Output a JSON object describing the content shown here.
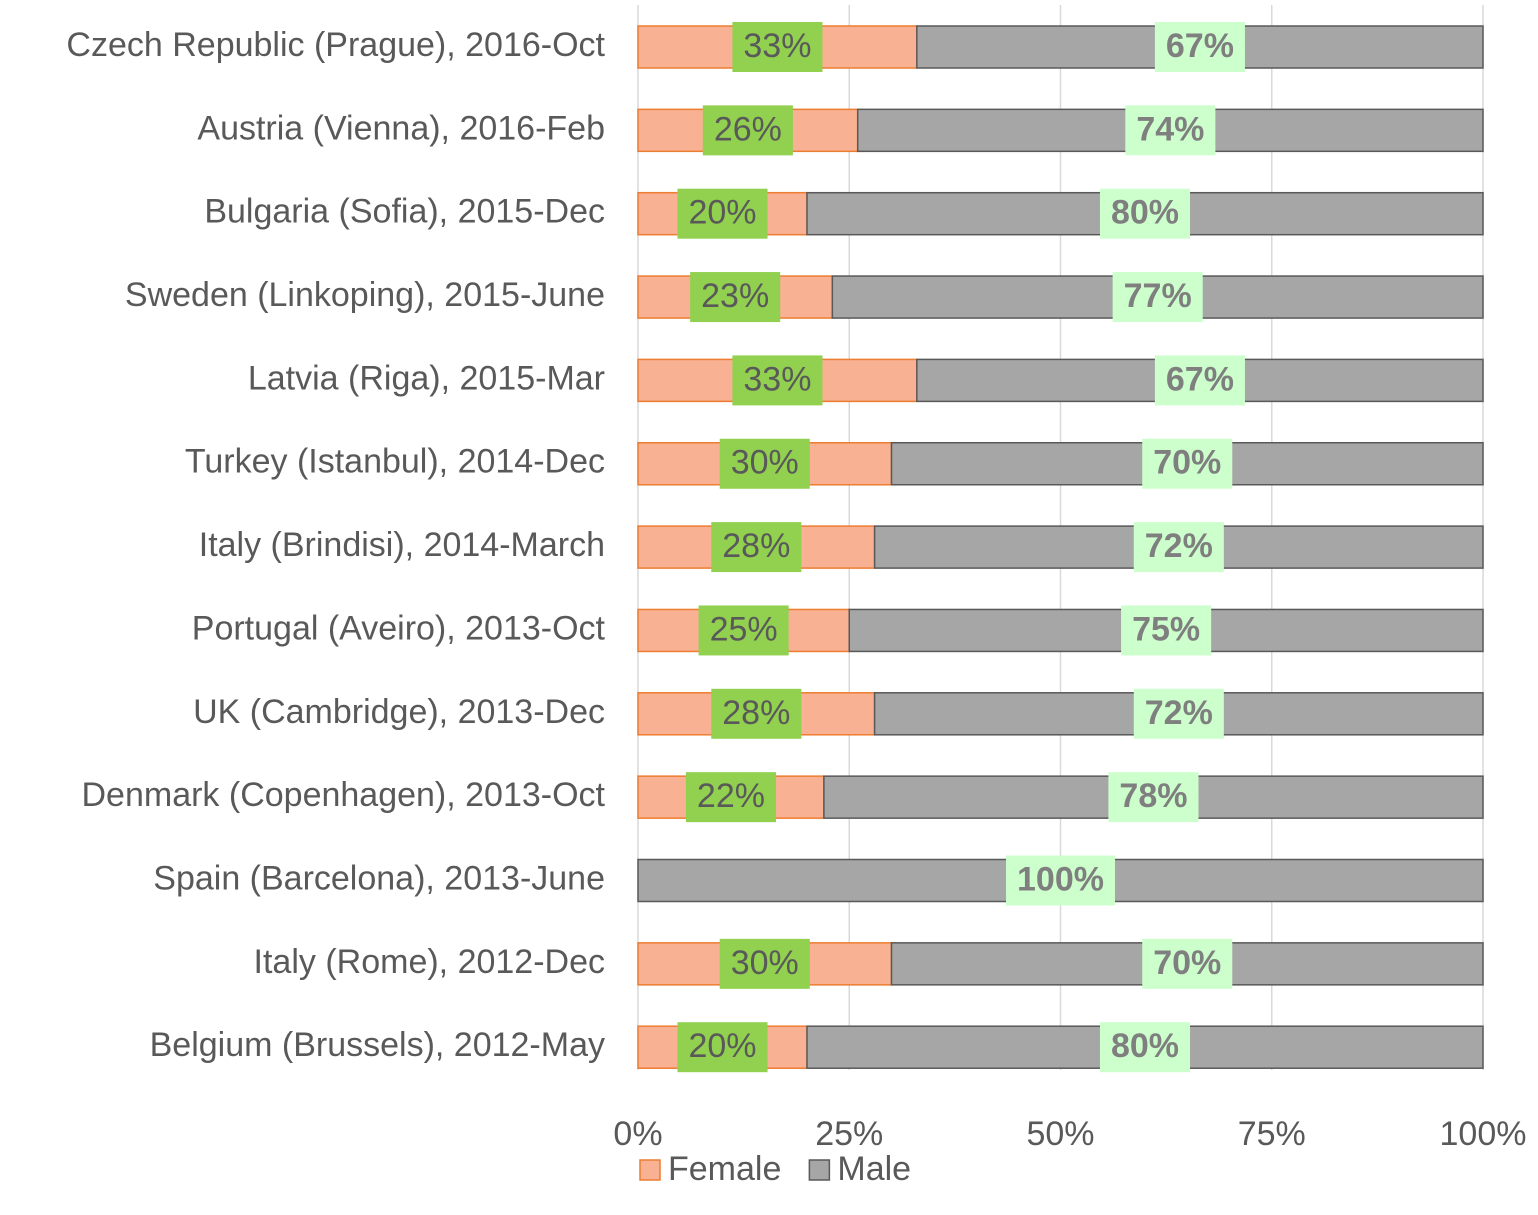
{
  "chart_data": {
    "type": "bar_stacked_horizontal_100",
    "categories": [
      "Czech Republic (Prague), 2016-Oct",
      "Austria (Vienna), 2016-Feb",
      "Bulgaria (Sofia), 2015-Dec",
      "Sweden (Linkoping), 2015-June",
      "Latvia (Riga), 2015-Mar",
      "Turkey (Istanbul), 2014-Dec",
      "Italy (Brindisi), 2014-March",
      "Portugal (Aveiro), 2013-Oct",
      "UK (Cambridge), 2013-Dec",
      "Denmark (Copenhagen), 2013-Oct",
      "Spain (Barcelona), 2013-June",
      "Italy (Rome), 2012-Dec",
      "Belgium (Brussels), 2012-May"
    ],
    "series": [
      {
        "name": "Female",
        "color": "#f8b193",
        "edge": "#ed7d31",
        "label_box": "#92d050",
        "values": [
          33,
          26,
          20,
          23,
          33,
          30,
          28,
          25,
          28,
          22,
          0,
          30,
          20
        ],
        "value_labels": [
          "33%",
          "26%",
          "20%",
          "23%",
          "33%",
          "30%",
          "28%",
          "25%",
          "28%",
          "22%",
          null,
          "30%",
          "20%"
        ]
      },
      {
        "name": "Male",
        "color": "#a6a6a6",
        "edge": "#595959",
        "label_box": "#ccffcc",
        "values": [
          67,
          74,
          80,
          77,
          67,
          70,
          72,
          75,
          72,
          78,
          100,
          70,
          80
        ],
        "value_labels": [
          "67%",
          "74%",
          "80%",
          "77%",
          "67%",
          "70%",
          "72%",
          "75%",
          "72%",
          "78%",
          "100%",
          "70%",
          "80%"
        ]
      }
    ],
    "xlim": [
      0,
      100
    ],
    "xticks": [
      {
        "value": 0,
        "label": "0%"
      },
      {
        "value": 25,
        "label": "25%"
      },
      {
        "value": 50,
        "label": "50%"
      },
      {
        "value": 75,
        "label": "75%"
      },
      {
        "value": 100,
        "label": "100%"
      }
    ],
    "grid": true,
    "legend": "bottom"
  }
}
